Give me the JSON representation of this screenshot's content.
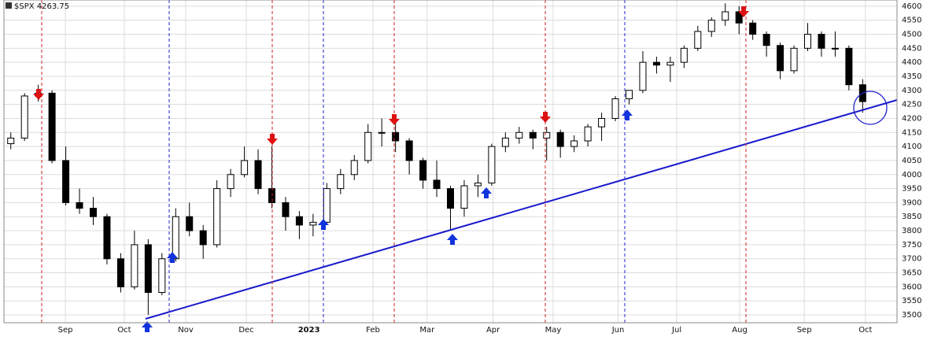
{
  "chart_data": {
    "type": "candlestick",
    "title": "$SPX 4263.75",
    "open": [
      4110,
      4130,
      4280,
      4290,
      4050,
      3900,
      3880,
      3850,
      3700,
      3600,
      3750,
      3580,
      3700,
      3850,
      3800,
      3750,
      3950,
      4000,
      4050,
      3950,
      3900,
      3850,
      3820,
      3830,
      3950,
      4000,
      4050,
      4150,
      4150,
      4120,
      4050,
      3980,
      3950,
      3880,
      3960,
      3970,
      4100,
      4130,
      4150,
      4130,
      4150,
      4100,
      4120,
      4170,
      4200,
      4270,
      4300,
      4400,
      4390,
      4400,
      4450,
      4510,
      4550,
      4580,
      4540,
      4500,
      4460,
      4370,
      4450,
      4500,
      4450,
      4450,
      4320
    ],
    "high": [
      4150,
      4290,
      4320,
      4300,
      4100,
      3950,
      3920,
      3860,
      3720,
      3800,
      3770,
      3720,
      3880,
      3900,
      3820,
      3980,
      4020,
      4100,
      4090,
      4100,
      3920,
      3870,
      3860,
      3970,
      4020,
      4070,
      4180,
      4200,
      4190,
      4130,
      4060,
      4050,
      3960,
      3980,
      4000,
      4110,
      4150,
      4170,
      4160,
      4170,
      4160,
      4140,
      4180,
      4220,
      4280,
      4300,
      4440,
      4420,
      4420,
      4460,
      4530,
      4560,
      4610,
      4600,
      4550,
      4510,
      4470,
      4460,
      4540,
      4510,
      4510,
      4460,
      4340
    ],
    "low": [
      4090,
      4120,
      4260,
      4040,
      3890,
      3860,
      3820,
      3680,
      3580,
      3590,
      3500,
      3570,
      3690,
      3780,
      3700,
      3740,
      3920,
      3990,
      3930,
      3880,
      3800,
      3770,
      3780,
      3820,
      3930,
      3980,
      4040,
      4100,
      4080,
      4000,
      3950,
      3920,
      3800,
      3850,
      3920,
      3960,
      4080,
      4110,
      4090,
      4050,
      4060,
      4080,
      4100,
      4120,
      4190,
      4250,
      4290,
      4360,
      4330,
      4380,
      4440,
      4490,
      4530,
      4500,
      4480,
      4420,
      4340,
      4360,
      4440,
      4420,
      4420,
      4300,
      4220
    ],
    "close": [
      4130,
      4280,
      4290,
      4050,
      3900,
      3880,
      3850,
      3700,
      3600,
      3750,
      3580,
      3700,
      3850,
      3800,
      3750,
      3950,
      4000,
      4050,
      3950,
      3900,
      3850,
      3820,
      3830,
      3950,
      4000,
      4050,
      4150,
      4150,
      4120,
      4050,
      3980,
      3950,
      3880,
      3960,
      3970,
      4100,
      4130,
      4150,
      4130,
      4150,
      4100,
      4120,
      4170,
      4200,
      4270,
      4300,
      4400,
      4390,
      4400,
      4450,
      4510,
      4550,
      4580,
      4540,
      4500,
      4460,
      4370,
      4450,
      4500,
      4450,
      4450,
      4320,
      4260
    ],
    "xlim": [
      0,
      65
    ],
    "xticks": [
      {
        "value": 4.47,
        "label": "Sep"
      },
      {
        "value": 8.76,
        "label": "Oct"
      },
      {
        "value": 13.23,
        "label": "Nov"
      },
      {
        "value": 17.64,
        "label": "Dec"
      },
      {
        "value": 22.2,
        "label": "2023"
      },
      {
        "value": 26.86,
        "label": "Feb"
      },
      {
        "value": 30.8,
        "label": "Mar"
      },
      {
        "value": 35.6,
        "label": "Apr"
      },
      {
        "value": 39.97,
        "label": "May"
      },
      {
        "value": 44.7,
        "label": "Jun"
      },
      {
        "value": 48.97,
        "label": "Jul"
      },
      {
        "value": 53.55,
        "label": "Aug"
      },
      {
        "value": 58.25,
        "label": "Sep"
      },
      {
        "value": 62.7,
        "label": "Oct"
      }
    ],
    "ylim": [
      3472,
      4622
    ],
    "yticks": [
      3500,
      3550,
      3600,
      3650,
      3700,
      3750,
      3800,
      3850,
      3900,
      3950,
      4000,
      4050,
      4100,
      4150,
      4200,
      4250,
      4300,
      4350,
      4400,
      4450,
      4500,
      4550,
      4600
    ],
    "grid": true
  }
}
